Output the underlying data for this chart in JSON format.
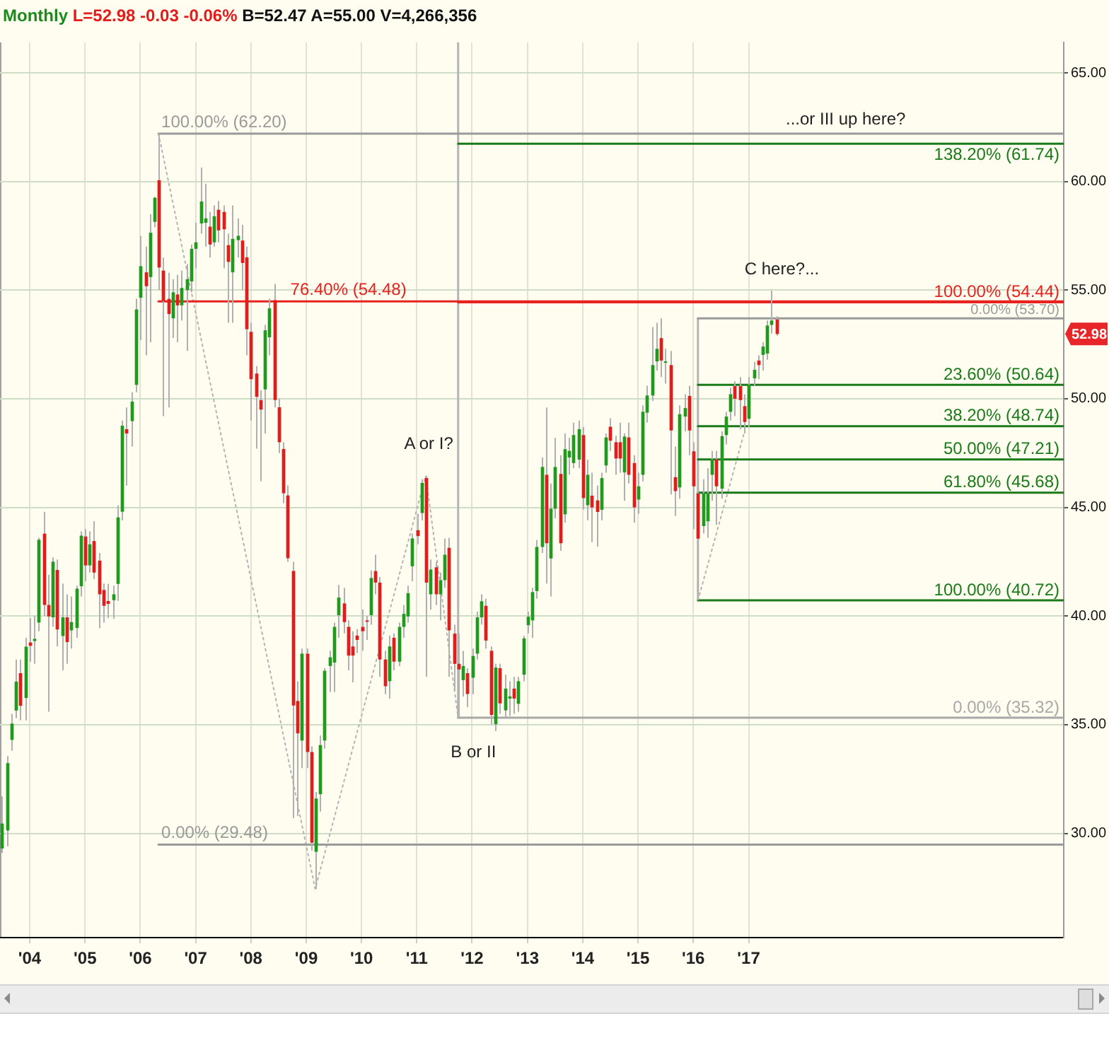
{
  "chart_data": {
    "type": "candlestick",
    "title": "Monthly L=52.98 -0.03 -0.06% B=52.47 A=55.00 V=4,266,356",
    "x": [
      "2003-07",
      "2003-08",
      "2003-09",
      "2003-10",
      "2003-11",
      "2003-12",
      "2004-01",
      "2004-02",
      "2004-03",
      "2004-04",
      "2004-05",
      "2004-06",
      "2004-07",
      "2004-08",
      "2004-09",
      "2004-10",
      "2004-11",
      "2004-12",
      "2005-01",
      "2005-02",
      "2005-03",
      "2005-04",
      "2005-05",
      "2005-06",
      "2005-07",
      "2005-08",
      "2005-09",
      "2005-10",
      "2005-11",
      "2005-12",
      "2006-01",
      "2006-02",
      "2006-03",
      "2006-04",
      "2006-05",
      "2006-06",
      "2006-07",
      "2006-08",
      "2006-09",
      "2006-10",
      "2006-11",
      "2006-12",
      "2007-01",
      "2007-02",
      "2007-03",
      "2007-04",
      "2007-05",
      "2007-06",
      "2007-07",
      "2007-08",
      "2007-09",
      "2007-10",
      "2007-11",
      "2007-12",
      "2008-01",
      "2008-02",
      "2008-03",
      "2008-04",
      "2008-05",
      "2008-06",
      "2008-07",
      "2008-08",
      "2008-09",
      "2008-10",
      "2008-11",
      "2008-12",
      "2009-01",
      "2009-02",
      "2009-03",
      "2009-04",
      "2009-05",
      "2009-06",
      "2009-07",
      "2009-08",
      "2009-09",
      "2009-10",
      "2009-11",
      "2009-12",
      "2010-01",
      "2010-02",
      "2010-03",
      "2010-04",
      "2010-05",
      "2010-06",
      "2010-07",
      "2010-08",
      "2010-09",
      "2010-10",
      "2010-11",
      "2010-12",
      "2011-01",
      "2011-02",
      "2011-03",
      "2011-04",
      "2011-05",
      "2011-06",
      "2011-07",
      "2011-08",
      "2011-09",
      "2011-10",
      "2011-11",
      "2011-12",
      "2012-01",
      "2012-02",
      "2012-03",
      "2012-04",
      "2012-05",
      "2012-06",
      "2012-07",
      "2012-08",
      "2012-09",
      "2012-10",
      "2012-11",
      "2012-12",
      "2013-01",
      "2013-02",
      "2013-03",
      "2013-04",
      "2013-05",
      "2013-06",
      "2013-07",
      "2013-08",
      "2013-09",
      "2013-10",
      "2013-11",
      "2013-12",
      "2014-01",
      "2014-02",
      "2014-03",
      "2014-04",
      "2014-05",
      "2014-06",
      "2014-07",
      "2014-08",
      "2014-09",
      "2014-10",
      "2014-11",
      "2014-12",
      "2015-01",
      "2015-02",
      "2015-03",
      "2015-04",
      "2015-05",
      "2015-06",
      "2015-07",
      "2015-08",
      "2015-09",
      "2015-10",
      "2015-11",
      "2015-12",
      "2016-01",
      "2016-02",
      "2016-03",
      "2016-04",
      "2016-05",
      "2016-06",
      "2016-07",
      "2016-08",
      "2016-09",
      "2016-10",
      "2016-11",
      "2016-12",
      "2017-01",
      "2017-02",
      "2017-03",
      "2017-04",
      "2017-05",
      "2017-06",
      "2017-07"
    ],
    "ohlc": [
      [
        29.3,
        31.7,
        29.1,
        30.45
      ],
      [
        30.13,
        33.55,
        29.4,
        33.23
      ],
      [
        34.3,
        35.5,
        33.8,
        35.05
      ],
      [
        35.65,
        38.0,
        35.3,
        36.98
      ],
      [
        37.37,
        38.0,
        35.2,
        35.87
      ],
      [
        36.23,
        39.0,
        35.2,
        38.59
      ],
      [
        38.78,
        39.9,
        37.9,
        38.63
      ],
      [
        38.85,
        40.0,
        37.8,
        38.95
      ],
      [
        39.7,
        43.6,
        39.3,
        43.51
      ],
      [
        43.79,
        44.8,
        40.0,
        40.51
      ],
      [
        40.51,
        41.9,
        35.6,
        39.98
      ],
      [
        39.94,
        42.7,
        39.5,
        42.5
      ],
      [
        42.12,
        42.6,
        38.6,
        39.38
      ],
      [
        39.08,
        41.5,
        37.5,
        39.94
      ],
      [
        39.94,
        41.0,
        37.8,
        38.8
      ],
      [
        39.34,
        40.9,
        38.5,
        39.72
      ],
      [
        39.45,
        41.4,
        39.0,
        41.26
      ],
      [
        41.37,
        43.9,
        40.9,
        43.7
      ],
      [
        43.66,
        44.0,
        41.6,
        42.33
      ],
      [
        42.33,
        43.9,
        42.0,
        43.3
      ],
      [
        43.45,
        44.37,
        41.7,
        42.0
      ],
      [
        42.55,
        42.9,
        39.44,
        41.0
      ],
      [
        41.2,
        41.5,
        39.7,
        40.47
      ],
      [
        40.69,
        41.48,
        39.9,
        40.56
      ],
      [
        40.73,
        41.4,
        39.87,
        41.0
      ],
      [
        41.48,
        45.1,
        40.7,
        44.54
      ],
      [
        44.8,
        49.0,
        44.4,
        48.76
      ],
      [
        48.6,
        49.6,
        46.0,
        48.4
      ],
      [
        48.97,
        50.3,
        47.8,
        49.87
      ],
      [
        50.64,
        54.6,
        50.3,
        54.11
      ],
      [
        54.65,
        57.5,
        52.7,
        56.1
      ],
      [
        55.82,
        57.0,
        52.0,
        55.18
      ],
      [
        55.6,
        58.5,
        52.6,
        57.64
      ],
      [
        58.14,
        59.3,
        57.9,
        59.25
      ],
      [
        60.06,
        62.2,
        55.0,
        56.04
      ],
      [
        55.9,
        56.5,
        49.2,
        54.5
      ],
      [
        54.6,
        55.8,
        49.6,
        53.9
      ],
      [
        53.7,
        55.5,
        52.8,
        54.9
      ],
      [
        54.8,
        55.7,
        52.6,
        54.3
      ],
      [
        54.3,
        55.9,
        53.6,
        55.1
      ],
      [
        55.0,
        56.2,
        52.2,
        55.5
      ],
      [
        55.4,
        57.1,
        54.9,
        56.9
      ],
      [
        56.9,
        58.1,
        56.0,
        57.2
      ],
      [
        58.07,
        60.64,
        57.6,
        59.08
      ],
      [
        58.1,
        59.9,
        57.0,
        58.3
      ],
      [
        57.92,
        58.6,
        56.5,
        57.1
      ],
      [
        57.2,
        58.9,
        57.0,
        58.4
      ],
      [
        58.7,
        59.1,
        57.2,
        57.75
      ],
      [
        58.6,
        58.9,
        56.0,
        57.8
      ],
      [
        57.07,
        57.6,
        53.5,
        56.3
      ],
      [
        55.82,
        58.9,
        53.5,
        57.36
      ],
      [
        57.3,
        58.3,
        56.5,
        57.5
      ],
      [
        57.28,
        58.0,
        55.0,
        56.25
      ],
      [
        56.51,
        57.0,
        52.0,
        53.2
      ],
      [
        53.08,
        53.5,
        49.0,
        50.9
      ],
      [
        51.16,
        51.5,
        47.7,
        50.09
      ],
      [
        49.94,
        50.4,
        46.2,
        49.5
      ],
      [
        50.43,
        53.4,
        48.4,
        53.15
      ],
      [
        52.83,
        54.6,
        52.0,
        54.16
      ],
      [
        54.54,
        55.29,
        49.6,
        49.94
      ],
      [
        49.61,
        50.0,
        47.5,
        48.0
      ],
      [
        47.69,
        48.0,
        45.2,
        45.65
      ],
      [
        45.55,
        46.0,
        42.5,
        42.66
      ],
      [
        42.07,
        42.5,
        30.7,
        35.88
      ],
      [
        36.09,
        37.0,
        30.8,
        34.6
      ],
      [
        34.27,
        38.5,
        33.0,
        38.27
      ],
      [
        38.27,
        38.5,
        33.0,
        33.74
      ],
      [
        33.74,
        34.0,
        29.2,
        29.57
      ],
      [
        29.15,
        31.9,
        27.44,
        31.6
      ],
      [
        31.8,
        34.5,
        31.0,
        34.06
      ],
      [
        34.27,
        37.6,
        33.9,
        37.48
      ],
      [
        37.7,
        38.4,
        36.5,
        38.1
      ],
      [
        37.86,
        39.7,
        36.5,
        39.5
      ],
      [
        40.04,
        41.43,
        39.0,
        40.85
      ],
      [
        40.58,
        41.3,
        39.2,
        39.72
      ],
      [
        39.5,
        39.8,
        37.5,
        38.18
      ],
      [
        38.6,
        39.3,
        36.95,
        38.18
      ],
      [
        39.1,
        39.4,
        38.3,
        38.9
      ],
      [
        39.5,
        40.3,
        38.4,
        39.3
      ],
      [
        39.8,
        40.0,
        38.9,
        39.75
      ],
      [
        40.04,
        42.1,
        39.6,
        41.75
      ],
      [
        42.07,
        42.82,
        41.0,
        41.54
      ],
      [
        41.54,
        41.8,
        37.2,
        38.0
      ],
      [
        38.0,
        38.4,
        36.4,
        36.77
      ],
      [
        37.0,
        39.1,
        36.2,
        38.6
      ],
      [
        39.0,
        39.2,
        37.5,
        37.9
      ],
      [
        37.9,
        39.7,
        37.7,
        39.5
      ],
      [
        39.5,
        40.5,
        39.0,
        40.1
      ],
      [
        39.98,
        41.4,
        39.7,
        41.05
      ],
      [
        42.29,
        43.8,
        41.6,
        43.57
      ],
      [
        43.95,
        44.7,
        43.3,
        43.68
      ],
      [
        44.74,
        46.3,
        44.4,
        46.13
      ],
      [
        46.35,
        46.45,
        37.2,
        41.54
      ],
      [
        41.0,
        42.6,
        40.3,
        42.14
      ],
      [
        42.24,
        42.5,
        40.5,
        41.0
      ],
      [
        41.0,
        42.0,
        39.8,
        41.65
      ],
      [
        41.65,
        43.57,
        41.3,
        42.82
      ],
      [
        43.14,
        43.6,
        37.2,
        39.34
      ],
      [
        39.19,
        39.6,
        36.6,
        37.8
      ],
      [
        37.8,
        39.2,
        35.32,
        37.54
      ],
      [
        37.05,
        38.4,
        36.3,
        37.7
      ],
      [
        37.37,
        37.6,
        35.8,
        36.41
      ],
      [
        37.16,
        38.5,
        36.4,
        38.16
      ],
      [
        38.27,
        40.2,
        38.0,
        39.94
      ],
      [
        39.94,
        41.0,
        39.6,
        40.68
      ],
      [
        40.47,
        40.8,
        38.5,
        38.87
      ],
      [
        38.4,
        38.6,
        35.0,
        35.45
      ],
      [
        35.02,
        37.8,
        34.7,
        37.63
      ],
      [
        37.6,
        37.8,
        35.5,
        35.98
      ],
      [
        35.66,
        37.3,
        35.3,
        36.66
      ],
      [
        36.2,
        37.0,
        35.4,
        36.3
      ],
      [
        36.66,
        37.2,
        35.5,
        36.2
      ],
      [
        35.96,
        37.2,
        35.6,
        37.0
      ],
      [
        37.3,
        39.1,
        37.0,
        38.97
      ],
      [
        39.58,
        40.2,
        39.2,
        39.97
      ],
      [
        39.8,
        41.3,
        39.0,
        41.1
      ],
      [
        41.15,
        43.5,
        40.8,
        43.18
      ],
      [
        43.18,
        47.3,
        42.9,
        46.86
      ],
      [
        46.5,
        49.6,
        41.5,
        43.35
      ],
      [
        42.65,
        46.1,
        40.9,
        44.94
      ],
      [
        44.94,
        48.2,
        44.5,
        46.86
      ],
      [
        46.54,
        47.4,
        43.0,
        43.35
      ],
      [
        44.68,
        48.4,
        44.3,
        47.68
      ],
      [
        47.3,
        48.2,
        46.5,
        47.6
      ],
      [
        47.04,
        48.9,
        46.8,
        48.33
      ],
      [
        47.2,
        49.0,
        46.8,
        48.6
      ],
      [
        48.33,
        48.7,
        44.9,
        45.43
      ],
      [
        45.1,
        47.2,
        44.4,
        46.5
      ],
      [
        45.54,
        46.6,
        43.4,
        45.0
      ],
      [
        45.32,
        46.0,
        43.2,
        44.79
      ],
      [
        44.89,
        46.6,
        44.4,
        46.35
      ],
      [
        46.93,
        48.4,
        46.6,
        48.22
      ],
      [
        48.71,
        49.1,
        47.6,
        48.07
      ],
      [
        48.0,
        48.3,
        46.5,
        47.25
      ],
      [
        48.0,
        48.9,
        46.6,
        47.25
      ],
      [
        46.61,
        48.4,
        45.3,
        48.26
      ],
      [
        48.22,
        48.9,
        46.1,
        46.5
      ],
      [
        47.04,
        47.4,
        44.3,
        45.0
      ],
      [
        45.36,
        46.6,
        44.7,
        45.97
      ],
      [
        46.5,
        49.7,
        46.2,
        49.4
      ],
      [
        49.36,
        50.6,
        48.9,
        50.15
      ],
      [
        50.15,
        53.3,
        49.9,
        51.55
      ],
      [
        51.72,
        53.5,
        51.3,
        52.3
      ],
      [
        52.79,
        53.7,
        51.0,
        51.76
      ],
      [
        51.68,
        52.3,
        50.7,
        51.72
      ],
      [
        51.55,
        52.2,
        45.6,
        48.54
      ],
      [
        46.39,
        47.8,
        44.6,
        45.75
      ],
      [
        45.92,
        49.7,
        45.4,
        49.29
      ],
      [
        49.18,
        50.2,
        48.5,
        49.57
      ],
      [
        50.13,
        50.6,
        47.4,
        48.54
      ],
      [
        47.58,
        48.0,
        44.0,
        45.97
      ],
      [
        45.64,
        46.0,
        40.72,
        43.56
      ],
      [
        44.14,
        46.3,
        43.8,
        45.64
      ],
      [
        44.36,
        46.8,
        43.6,
        45.64
      ],
      [
        46.5,
        47.6,
        45.3,
        47.21
      ],
      [
        47.21,
        47.6,
        44.2,
        45.97
      ],
      [
        45.86,
        48.5,
        45.4,
        48.28
      ],
      [
        48.33,
        49.4,
        47.9,
        49.18
      ],
      [
        49.4,
        50.5,
        49.0,
        50.21
      ],
      [
        50.58,
        50.8,
        49.2,
        50.0
      ],
      [
        50.58,
        51.0,
        48.6,
        49.94
      ],
      [
        49.66,
        50.2,
        48.4,
        48.93
      ],
      [
        49.08,
        51.0,
        48.7,
        50.64
      ],
      [
        50.94,
        51.7,
        50.6,
        51.33
      ],
      [
        51.76,
        52.0,
        50.9,
        51.55
      ],
      [
        52.02,
        52.6,
        51.3,
        52.4
      ],
      [
        52.08,
        53.6,
        51.8,
        53.37
      ],
      [
        53.4,
        54.98,
        53.0,
        53.6
      ],
      [
        53.65,
        53.8,
        52.9,
        52.98
      ]
    ],
    "colors": [
      "#1f9a1f",
      "#1f9a1f",
      "#1f9a1f",
      "#1f9a1f",
      "#e41b1b",
      "#1f9a1f",
      "#e41b1b",
      "#1f9a1f",
      "#1f9a1f",
      "#e41b1b",
      "#e41b1b",
      "#1f9a1f",
      "#e41b1b",
      "#1f9a1f",
      "#e41b1b",
      "#1f9a1f",
      "#1f9a1f",
      "#1f9a1f",
      "#e41b1b",
      "#1f9a1f",
      "#e41b1b",
      "#e41b1b",
      "#e41b1b",
      "#e41b1b",
      "#1f9a1f",
      "#1f9a1f",
      "#1f9a1f",
      "#e41b1b",
      "#1f9a1f",
      "#1f9a1f",
      "#1f9a1f",
      "#e41b1b",
      "#1f9a1f",
      "#1f9a1f",
      "#e41b1b",
      "#e41b1b",
      "#e41b1b",
      "#1f9a1f",
      "#e41b1b",
      "#1f9a1f",
      "#1f9a1f",
      "#1f9a1f",
      "#1f9a1f",
      "#1f9a1f",
      "#1f9a1f",
      "#e41b1b",
      "#1f9a1f",
      "#e41b1b",
      "#e41b1b",
      "#e41b1b",
      "#1f9a1f",
      "#1f9a1f",
      "#e41b1b",
      "#e41b1b",
      "#e41b1b",
      "#e41b1b",
      "#e41b1b",
      "#1f9a1f",
      "#1f9a1f",
      "#e41b1b",
      "#e41b1b",
      "#e41b1b",
      "#e41b1b",
      "#e41b1b",
      "#e41b1b",
      "#1f9a1f",
      "#e41b1b",
      "#e41b1b",
      "#1f9a1f",
      "#1f9a1f",
      "#1f9a1f",
      "#1f9a1f",
      "#1f9a1f",
      "#1f9a1f",
      "#e41b1b",
      "#e41b1b",
      "#e41b1b",
      "#e41b1b",
      "#e41b1b",
      "#e41b1b",
      "#1f9a1f",
      "#e41b1b",
      "#e41b1b",
      "#e41b1b",
      "#1f9a1f",
      "#e41b1b",
      "#1f9a1f",
      "#1f9a1f",
      "#1f9a1f",
      "#1f9a1f",
      "#e41b1b",
      "#1f9a1f",
      "#e41b1b",
      "#1f9a1f",
      "#e41b1b",
      "#1f9a1f",
      "#1f9a1f",
      "#e41b1b",
      "#e41b1b",
      "#e41b1b",
      "#1f9a1f",
      "#e41b1b",
      "#1f9a1f",
      "#1f9a1f",
      "#1f9a1f",
      "#e41b1b",
      "#e41b1b",
      "#1f9a1f",
      "#e41b1b",
      "#1f9a1f",
      "#1f9a1f",
      "#e41b1b",
      "#1f9a1f",
      "#1f9a1f",
      "#1f9a1f",
      "#1f9a1f",
      "#1f9a1f",
      "#1f9a1f",
      "#e41b1b",
      "#1f9a1f",
      "#1f9a1f",
      "#e41b1b",
      "#1f9a1f",
      "#1f9a1f",
      "#1f9a1f",
      "#1f9a1f",
      "#e41b1b",
      "#1f9a1f",
      "#e41b1b",
      "#e41b1b",
      "#1f9a1f",
      "#1f9a1f",
      "#e41b1b",
      "#e41b1b",
      "#e41b1b",
      "#1f9a1f",
      "#e41b1b",
      "#e41b1b",
      "#1f9a1f",
      "#1f9a1f",
      "#1f9a1f",
      "#1f9a1f",
      "#1f9a1f",
      "#e41b1b",
      "#1f9a1f",
      "#e41b1b",
      "#e41b1b",
      "#1f9a1f",
      "#1f9a1f",
      "#e41b1b",
      "#e41b1b",
      "#e41b1b",
      "#1f9a1f",
      "#1f9a1f",
      "#1f9a1f",
      "#e41b1b",
      "#1f9a1f",
      "#1f9a1f",
      "#1f9a1f",
      "#e41b1b",
      "#e41b1b",
      "#e41b1b",
      "#1f9a1f",
      "#1f9a1f",
      "#e41b1b",
      "#1f9a1f",
      "#1f9a1f",
      "#1f9a1f",
      "#e41b1b"
    ],
    "series": [
      {
        "type": "line",
        "name": "100.00% (62.20)",
        "color": "#9a9a9a",
        "x": [
          "2006-05",
          "2022-09-13"
        ],
        "values": [
          62.2,
          62.2
        ]
      },
      {
        "type": "line",
        "name": "76.40% (54.48)",
        "color": "#e8231f",
        "x": [
          "2006-05",
          "2022-09-13"
        ],
        "values": [
          54.48,
          54.48
        ]
      },
      {
        "type": "line",
        "name": "0.00% (29.48)",
        "color": "#9a9a9a",
        "x": [
          "2006-05",
          "2022-09-13"
        ],
        "values": [
          29.48,
          29.48
        ]
      },
      {
        "type": "line",
        "name": "138.20% (61.74)",
        "color": "#1a7a1a",
        "x": [
          "2011-10",
          "2022-09-13"
        ],
        "values": [
          61.74,
          61.74
        ]
      },
      {
        "type": "line",
        "name": "100.00% (54.44)",
        "color": "#e8231f",
        "x": [
          "2011-10",
          "2022-09-13"
        ],
        "values": [
          54.44,
          54.44
        ]
      },
      {
        "type": "line",
        "name": "0.00% (35.32)",
        "color": "#a8a8a8",
        "x": [
          "2011-10",
          "2022-09-13"
        ],
        "values": [
          35.32,
          35.32
        ]
      },
      {
        "type": "line",
        "name": "0.00% (53.70)",
        "color": "#9a9a9a",
        "x": [
          "2016-02",
          "2022-09-13"
        ],
        "values": [
          53.7,
          53.7
        ]
      },
      {
        "type": "line",
        "name": "23.60% (50.64)",
        "color": "#1a7a1a",
        "x": [
          "2016-02",
          "2022-09-13"
        ],
        "values": [
          50.64,
          50.64
        ]
      },
      {
        "type": "line",
        "name": "38.20% (48.74)",
        "color": "#1a7a1a",
        "x": [
          "2016-02",
          "2022-09-13"
        ],
        "values": [
          48.74,
          48.74
        ]
      },
      {
        "type": "line",
        "name": "50.00% (47.21)",
        "color": "#1a7a1a",
        "x": [
          "2016-02",
          "2022-09-13"
        ],
        "values": [
          47.21,
          47.21
        ]
      },
      {
        "type": "line",
        "name": "61.80% (45.68)",
        "color": "#1a7a1a",
        "x": [
          "2016-02",
          "2022-09-13"
        ],
        "values": [
          45.68,
          45.68
        ]
      },
      {
        "type": "line",
        "name": "100.00% (40.72)",
        "color": "#1a7a1a",
        "x": [
          "2016-02",
          "2022-09-13"
        ],
        "values": [
          40.72,
          40.72
        ]
      },
      {
        "type": "line",
        "color": "#b4b4b4",
        "line_style": "dotted",
        "x": [
          "2006-05",
          "2009-03",
          "2011-03",
          "2011-10"
        ],
        "values": [
          62.2,
          27.44,
          46.45,
          35.32
        ]
      },
      {
        "type": "line",
        "color": "#b4b4b4",
        "line_style": "dotted",
        "x": [
          "2016-02",
          "2016-12"
        ],
        "values": [
          40.72,
          48.4
        ]
      },
      {
        "type": "line",
        "color": "#b4b4b4",
        "x": [
          "2011-10",
          "2011-10"
        ],
        "values": [
          35.32,
          66.4
        ]
      },
      {
        "type": "line",
        "color": "#b4b4b4",
        "x": [
          "2016-02",
          "2016-02"
        ],
        "values": [
          40.72,
          53.7
        ]
      }
    ],
    "annotations": [
      "...or III up here?",
      "C here?...",
      "A or I?",
      "B or II",
      "52.98"
    ],
    "xlim": [
      "2003-06-19",
      "2022-09-13"
    ],
    "xticks": [
      {
        "value": "2004",
        "label": "'04"
      },
      {
        "value": "2005",
        "label": "'05"
      },
      {
        "value": "2006",
        "label": "'06"
      },
      {
        "value": "2007",
        "label": "'07"
      },
      {
        "value": "2008",
        "label": "'08"
      },
      {
        "value": "2009",
        "label": "'09"
      },
      {
        "value": "2010",
        "label": "'10"
      },
      {
        "value": "2011",
        "label": "'11"
      },
      {
        "value": "2012",
        "label": "'12"
      },
      {
        "value": "2013",
        "label": "'13"
      },
      {
        "value": "2014",
        "label": "'14"
      },
      {
        "value": "2015",
        "label": "'15"
      },
      {
        "value": "2016",
        "label": "'16"
      },
      {
        "value": "2017",
        "label": "'17"
      }
    ],
    "ylim": [
      25.2,
      66.4
    ],
    "yticks": [
      {
        "value": 30,
        "label": "30.00"
      },
      {
        "value": 35,
        "label": "35.00"
      },
      {
        "value": 40,
        "label": "40.00"
      },
      {
        "value": 45,
        "label": "45.00"
      },
      {
        "value": 50,
        "label": "50.00"
      },
      {
        "value": 55,
        "label": "55.00"
      },
      {
        "value": 60,
        "label": "60.00"
      },
      {
        "value": 65,
        "label": "65.00"
      }
    ],
    "grid": true
  }
}
